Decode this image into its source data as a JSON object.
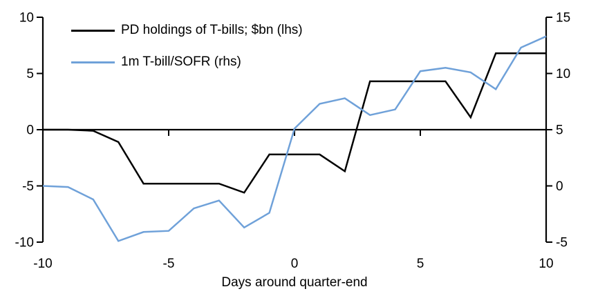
{
  "figure": {
    "background": "#ffffff",
    "xlabel": "Days around quarter-end",
    "legend": [
      {
        "label": "PD holdings of T-bills; $bn (lhs)",
        "color": "#000000"
      },
      {
        "label": "1m T-bill/SOFR (rhs)",
        "color": "#6fa1d9"
      }
    ]
  },
  "chart_data": {
    "type": "line",
    "title": "",
    "xlabel": "Days around quarter-end",
    "grid": false,
    "legend_position": "top-left",
    "x": [
      -10,
      -9,
      -8,
      -7,
      -6,
      -5,
      -4,
      -3,
      -2,
      -1,
      0,
      1,
      2,
      3,
      4,
      5,
      6,
      7,
      8,
      9,
      10
    ],
    "series": [
      {
        "name": "PD holdings of T-bills; $bn (lhs)",
        "axis": "left",
        "color": "#000000",
        "values": [
          0,
          0,
          -0.1,
          -1.1,
          -4.8,
          -4.8,
          -4.8,
          -4.8,
          -5.6,
          -2.2,
          -2.2,
          -2.2,
          -3.7,
          4.3,
          4.3,
          4.3,
          4.3,
          1.1,
          6.8,
          6.8,
          6.8
        ]
      },
      {
        "name": "1m T-bill/SOFR (rhs)",
        "axis": "right",
        "color": "#6fa1d9",
        "values": [
          0.0,
          -0.1,
          -1.2,
          -4.9,
          -4.1,
          -4.0,
          -2.0,
          -1.3,
          -3.7,
          -2.4,
          5.1,
          7.3,
          7.8,
          6.3,
          6.8,
          10.2,
          10.5,
          10.1,
          8.6,
          12.3,
          13.3
        ]
      }
    ],
    "left_axis": {
      "range": [
        -10,
        10
      ],
      "ticks": [
        10,
        5,
        0,
        -5,
        -10
      ]
    },
    "right_axis": {
      "range": [
        -5,
        15
      ],
      "ticks": [
        15,
        10,
        5,
        0,
        -5
      ]
    },
    "x_axis": {
      "range": [
        -10,
        10
      ],
      "tick_labels": [
        -10,
        -5,
        0,
        5,
        10
      ],
      "zero_line_ticks": [
        -5,
        0,
        5
      ]
    }
  }
}
